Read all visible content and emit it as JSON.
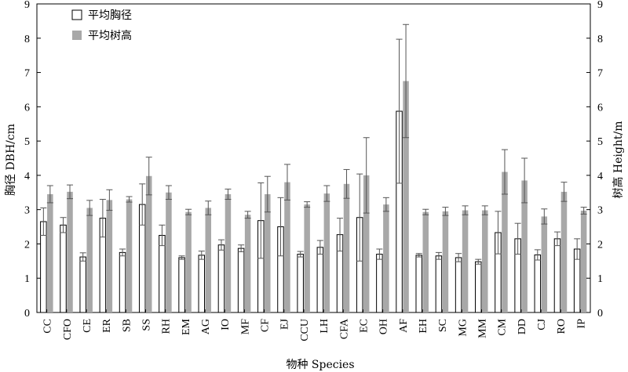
{
  "chart_data": {
    "type": "bar",
    "xlabel": "物种 Species",
    "ylabel_left": "胸径 DBH/cm",
    "ylabel_right": "树高 Height/m",
    "ylim": [
      0,
      9
    ],
    "yticks": [
      0,
      1,
      2,
      3,
      4,
      5,
      6,
      7,
      8,
      9
    ],
    "legend_position": "top-left",
    "grid": false,
    "categories": [
      "CC",
      "CFO",
      "CE",
      "ER",
      "SB",
      "SS",
      "RH",
      "EM",
      "AG",
      "IO",
      "MF",
      "CF",
      "EJ",
      "CCU",
      "LH",
      "CFA",
      "EC",
      "OH",
      "AF",
      "EH",
      "SC",
      "MG",
      "MM",
      "CM",
      "DD",
      "CJ",
      "RO",
      "IP"
    ],
    "series": [
      {
        "name": "平均胸径",
        "axis": "left",
        "color": "#ffffff",
        "stroke": "#000000",
        "values": [
          2.65,
          2.55,
          1.62,
          2.75,
          1.75,
          3.15,
          2.25,
          1.6,
          1.67,
          1.97,
          1.87,
          2.68,
          2.5,
          1.7,
          1.9,
          2.27,
          2.77,
          1.7,
          5.87,
          1.67,
          1.65,
          1.6,
          1.48,
          2.33,
          2.15,
          1.68,
          2.15,
          1.85
        ],
        "errors": [
          0.4,
          0.22,
          0.12,
          0.55,
          0.1,
          0.6,
          0.3,
          0.05,
          0.12,
          0.15,
          0.1,
          1.1,
          0.85,
          0.08,
          0.2,
          0.48,
          1.27,
          0.15,
          2.1,
          0.05,
          0.1,
          0.12,
          0.07,
          0.62,
          0.45,
          0.15,
          0.2,
          0.3
        ]
      },
      {
        "name": "平均树高",
        "axis": "right",
        "color": "#a8a8a8",
        "stroke": "#a8a8a8",
        "values": [
          3.45,
          3.52,
          3.05,
          3.28,
          3.3,
          3.98,
          3.5,
          2.93,
          3.05,
          3.45,
          2.85,
          3.45,
          3.8,
          3.15,
          3.47,
          3.75,
          4.0,
          3.15,
          6.75,
          2.93,
          2.95,
          2.98,
          2.98,
          4.1,
          3.85,
          2.8,
          3.52,
          2.97
        ],
        "errors": [
          0.25,
          0.2,
          0.22,
          0.3,
          0.08,
          0.55,
          0.2,
          0.08,
          0.2,
          0.15,
          0.1,
          0.52,
          0.52,
          0.08,
          0.23,
          0.42,
          1.1,
          0.2,
          1.65,
          0.08,
          0.12,
          0.13,
          0.13,
          0.65,
          0.65,
          0.22,
          0.28,
          0.1
        ]
      }
    ]
  }
}
